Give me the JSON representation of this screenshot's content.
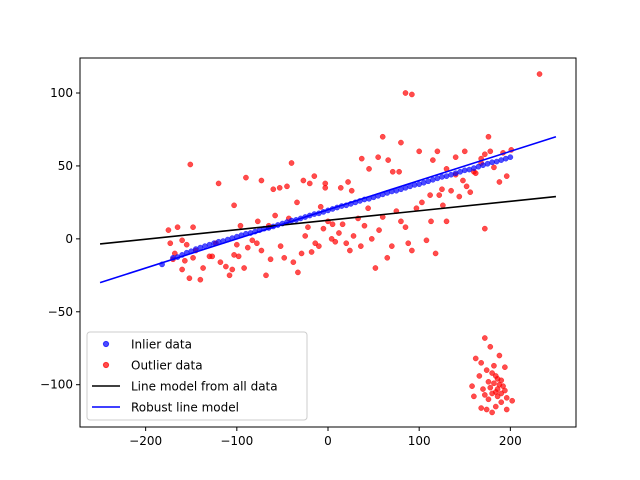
{
  "chart_data": {
    "type": "scatter",
    "title": "",
    "xlabel": "",
    "ylabel": "",
    "xlim": [
      -272,
      272
    ],
    "ylim": [
      -129,
      124
    ],
    "x_ticks": [
      -200,
      -100,
      0,
      100,
      200
    ],
    "y_ticks": [
      -100,
      -50,
      0,
      50,
      100
    ],
    "x_tick_labels": [
      "−200",
      "−100",
      "0",
      "100",
      "200"
    ],
    "y_tick_labels": [
      "−100",
      "−50",
      "0",
      "50",
      "100"
    ],
    "grid": false,
    "legend_position": "lower-left",
    "series": [
      {
        "name": "Inlier data",
        "kind": "points",
        "color": "#0000ff",
        "points": [
          [
            -182,
            -17.5
          ],
          [
            -170,
            -13
          ],
          [
            -165,
            -12.5
          ],
          [
            -160,
            -11
          ],
          [
            -155,
            -9.5
          ],
          [
            -150,
            -8.5
          ],
          [
            -145,
            -7
          ],
          [
            -140,
            -6
          ],
          [
            -135,
            -5
          ],
          [
            -130,
            -4
          ],
          [
            -125,
            -3
          ],
          [
            -120,
            -2
          ],
          [
            -115,
            -1.5
          ],
          [
            -110,
            -0.5
          ],
          [
            -105,
            0.5
          ],
          [
            -100,
            1.5
          ],
          [
            -95,
            2.5
          ],
          [
            -90,
            3.5
          ],
          [
            -85,
            4
          ],
          [
            -80,
            5
          ],
          [
            -75,
            6
          ],
          [
            -70,
            7
          ],
          [
            -65,
            7.5
          ],
          [
            -60,
            8.5
          ],
          [
            -55,
            9.5
          ],
          [
            -50,
            10.5
          ],
          [
            -45,
            11.5
          ],
          [
            -40,
            12.5
          ],
          [
            -35,
            13
          ],
          [
            -30,
            14
          ],
          [
            -25,
            15
          ],
          [
            -20,
            16
          ],
          [
            -15,
            17
          ],
          [
            -10,
            17.5
          ],
          [
            -5,
            18.5
          ],
          [
            0,
            19.5
          ],
          [
            5,
            20.5
          ],
          [
            10,
            21.5
          ],
          [
            15,
            22.5
          ],
          [
            20,
            23
          ],
          [
            25,
            24
          ],
          [
            30,
            25
          ],
          [
            35,
            26
          ],
          [
            40,
            27
          ],
          [
            45,
            27.5
          ],
          [
            50,
            28.5
          ],
          [
            55,
            29.5
          ],
          [
            60,
            30.5
          ],
          [
            65,
            31.5
          ],
          [
            70,
            32.5
          ],
          [
            75,
            33
          ],
          [
            80,
            34
          ],
          [
            85,
            35
          ],
          [
            90,
            36
          ],
          [
            95,
            37
          ],
          [
            100,
            37.5
          ],
          [
            105,
            38.5
          ],
          [
            110,
            39.5
          ],
          [
            115,
            40.5
          ],
          [
            120,
            41.5
          ],
          [
            125,
            42.5
          ],
          [
            130,
            43
          ],
          [
            135,
            44
          ],
          [
            140,
            45
          ],
          [
            145,
            46
          ],
          [
            150,
            47
          ],
          [
            155,
            47.5
          ],
          [
            160,
            48.5
          ],
          [
            165,
            49.5
          ],
          [
            170,
            50.5
          ],
          [
            175,
            51.5
          ],
          [
            180,
            52.5
          ],
          [
            185,
            53
          ],
          [
            190,
            54
          ],
          [
            195,
            55
          ],
          [
            200,
            56
          ]
        ]
      },
      {
        "name": "Outlier data",
        "kind": "points",
        "color": "#ff0000",
        "points": [
          [
            -168,
            -10
          ],
          [
            -173,
            -3
          ],
          [
            -175,
            6
          ],
          [
            -165,
            8
          ],
          [
            -160,
            -1
          ],
          [
            -155,
            -4
          ],
          [
            -152,
            -27
          ],
          [
            -148,
            -13
          ],
          [
            -145,
            -8
          ],
          [
            -140,
            -28
          ],
          [
            -137,
            -20
          ],
          [
            -130,
            -12
          ],
          [
            -127,
            -12
          ],
          [
            -123,
            -3
          ],
          [
            -118,
            -16
          ],
          [
            -112,
            -19
          ],
          [
            -108,
            -25
          ],
          [
            -103,
            -11
          ],
          [
            -100,
            -4
          ],
          [
            -96,
            9
          ],
          [
            -92,
            -20
          ],
          [
            -88,
            -6
          ],
          [
            -83,
            -1
          ],
          [
            -78,
            -3
          ],
          [
            -73,
            -8
          ],
          [
            -68,
            -25
          ],
          [
            -63,
            -14
          ],
          [
            -58,
            16
          ],
          [
            -52,
            -5
          ],
          [
            -48,
            -13
          ],
          [
            -43,
            14
          ],
          [
            -38,
            -16
          ],
          [
            -33,
            -23
          ],
          [
            -29,
            -10
          ],
          [
            -25,
            2
          ],
          [
            -22,
            8
          ],
          [
            -18,
            -9
          ],
          [
            -14,
            -3
          ],
          [
            -10,
            -5
          ],
          [
            -5,
            7
          ],
          [
            -3,
            35
          ],
          [
            0,
            12
          ],
          [
            4,
            0
          ],
          [
            8,
            -2
          ],
          [
            12,
            4
          ],
          [
            16,
            10
          ],
          [
            20,
            -3
          ],
          [
            24,
            -8
          ],
          [
            28,
            2
          ],
          [
            33,
            14
          ],
          [
            36,
            -5
          ],
          [
            40,
            9
          ],
          [
            44,
            21
          ],
          [
            48,
            0
          ],
          [
            52,
            -20
          ],
          [
            56,
            6
          ],
          [
            60,
            15
          ],
          [
            65,
            -13
          ],
          [
            70,
            -5
          ],
          [
            75,
            19
          ],
          [
            80,
            12
          ],
          [
            85,
            8
          ],
          [
            88,
            -3
          ],
          [
            92,
            -8
          ],
          [
            97,
            21
          ],
          [
            103,
            25
          ],
          [
            108,
            -1
          ],
          [
            113,
            12
          ],
          [
            118,
            -10
          ],
          [
            122,
            30
          ],
          [
            126,
            23
          ],
          [
            130,
            12
          ],
          [
            135,
            33
          ],
          [
            140,
            44
          ],
          [
            144,
            29
          ],
          [
            148,
            40
          ],
          [
            152,
            36
          ],
          [
            156,
            32
          ],
          [
            162,
            45
          ],
          [
            168,
            52
          ],
          [
            172,
            58
          ],
          [
            176,
            70
          ],
          [
            182,
            49
          ],
          [
            188,
            39
          ],
          [
            196,
            43
          ],
          [
            201,
            61
          ],
          [
            168,
            55
          ],
          [
            150,
            60
          ],
          [
            125,
            34
          ],
          [
            112,
            30
          ],
          [
            -170,
            -14
          ],
          [
            -157,
            -15
          ],
          [
            -160,
            -21
          ],
          [
            -151,
            51
          ],
          [
            -148,
            8
          ],
          [
            -120,
            38
          ],
          [
            -103,
            23
          ],
          [
            -90,
            42
          ],
          [
            -77,
            12
          ],
          [
            -73,
            40
          ],
          [
            -65,
            9
          ],
          [
            -60,
            34
          ],
          [
            -53,
            35
          ],
          [
            -45,
            36
          ],
          [
            -40,
            52
          ],
          [
            -34,
            25
          ],
          [
            -27,
            40
          ],
          [
            -20,
            38
          ],
          [
            -15,
            43
          ],
          [
            -8,
            22
          ],
          [
            -3,
            38
          ],
          [
            5,
            10
          ],
          [
            14,
            35
          ],
          [
            22,
            39
          ],
          [
            26,
            33
          ],
          [
            37,
            55
          ],
          [
            45,
            48
          ],
          [
            55,
            56
          ],
          [
            60,
            70
          ],
          [
            66,
            54
          ],
          [
            71,
            46
          ],
          [
            78,
            46
          ],
          [
            80,
            66
          ],
          [
            85,
            100
          ],
          [
            92,
            99
          ],
          [
            100,
            60
          ],
          [
            115,
            54
          ],
          [
            120,
            60
          ],
          [
            130,
            48
          ],
          [
            140,
            56
          ],
          [
            160,
            46
          ],
          [
            172,
            7
          ],
          [
            178,
            60
          ],
          [
            192,
            59
          ],
          [
            232,
            113
          ],
          [
            -105,
            -21
          ],
          [
            -98,
            -12
          ],
          [
            172,
            -68
          ],
          [
            178,
            -74
          ],
          [
            162,
            -82
          ],
          [
            168,
            -85
          ],
          [
            174,
            -90
          ],
          [
            180,
            -92
          ],
          [
            184,
            -94
          ],
          [
            186,
            -96
          ],
          [
            190,
            -97
          ],
          [
            176,
            -98
          ],
          [
            182,
            -99
          ],
          [
            188,
            -100
          ],
          [
            192,
            -101
          ],
          [
            178,
            -102
          ],
          [
            170,
            -103
          ],
          [
            186,
            -103
          ],
          [
            194,
            -104
          ],
          [
            184,
            -105
          ],
          [
            180,
            -106
          ],
          [
            190,
            -106
          ],
          [
            172,
            -107
          ],
          [
            186,
            -108
          ],
          [
            196,
            -109
          ],
          [
            176,
            -110
          ],
          [
            190,
            -112
          ],
          [
            160,
            -108
          ],
          [
            202,
            -111
          ],
          [
            168,
            -116
          ],
          [
            174,
            -117
          ],
          [
            184,
            -115
          ],
          [
            196,
            -117
          ],
          [
            180,
            -119
          ],
          [
            158,
            -101
          ],
          [
            188,
            -80
          ],
          [
            194,
            -88
          ],
          [
            166,
            -94
          ],
          [
            182,
            -87
          ]
        ]
      },
      {
        "name": "Line model from all data",
        "kind": "line",
        "color": "#000000",
        "points": [
          [
            -250,
            -3.5
          ],
          [
            250,
            29
          ]
        ]
      },
      {
        "name": "Robust line model",
        "kind": "line",
        "color": "#0000ff",
        "points": [
          [
            -250,
            -30
          ],
          [
            250,
            70
          ]
        ]
      }
    ]
  }
}
